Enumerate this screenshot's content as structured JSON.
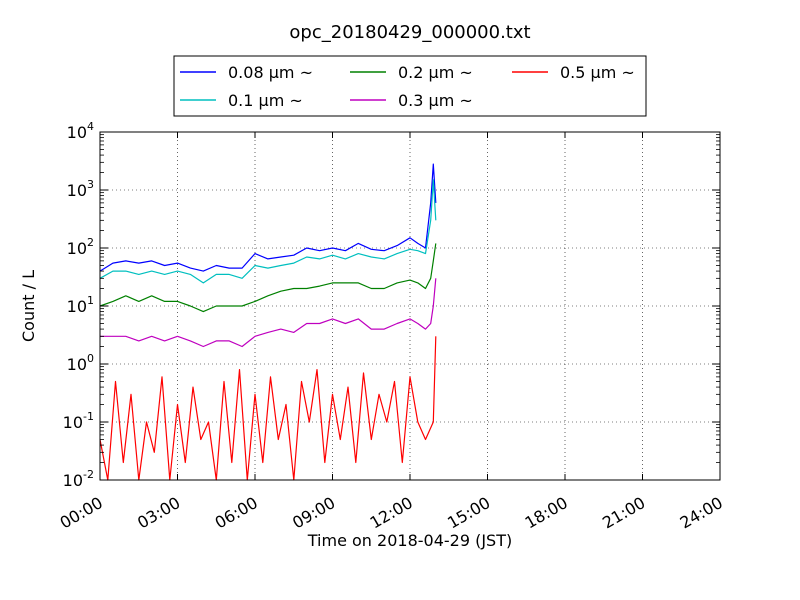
{
  "chart_data": {
    "type": "line",
    "title": "opc_20180429_000000.txt",
    "xlabel": "Time on 2018-04-29 (JST)",
    "ylabel": "Count / L",
    "x_unit": "hours",
    "xlim": [
      0,
      24
    ],
    "ylim": [
      0.01,
      10000
    ],
    "yscale": "log",
    "grid": true,
    "legend_position": "top-center",
    "x_ticks": [
      "00:00",
      "03:00",
      "06:00",
      "09:00",
      "12:00",
      "15:00",
      "18:00",
      "21:00",
      "24:00"
    ],
    "y_tick_bases": [
      "10",
      "10",
      "10",
      "10",
      "10",
      "10",
      "10"
    ],
    "y_tick_exps": [
      "-2",
      "-1",
      "0",
      "1",
      "2",
      "3",
      "4"
    ],
    "series": [
      {
        "name": "0.08 μm ~",
        "color": "#0000ff",
        "x": [
          0,
          0.5,
          1,
          1.5,
          2,
          2.5,
          3,
          3.5,
          4,
          4.5,
          5,
          5.5,
          6,
          6.5,
          7,
          7.5,
          8,
          8.5,
          9,
          9.5,
          10,
          10.5,
          11,
          11.5,
          12,
          12.3,
          12.6,
          12.8,
          12.9,
          13.0
        ],
        "y": [
          40,
          55,
          60,
          55,
          60,
          50,
          55,
          45,
          40,
          50,
          45,
          45,
          80,
          65,
          70,
          75,
          100,
          90,
          100,
          90,
          120,
          95,
          90,
          110,
          150,
          120,
          100,
          600,
          2800,
          600
        ]
      },
      {
        "name": "0.1 μm ~",
        "color": "#00bfbf",
        "x": [
          0,
          0.5,
          1,
          1.5,
          2,
          2.5,
          3,
          3.5,
          4,
          4.5,
          5,
          5.5,
          6,
          6.5,
          7,
          7.5,
          8,
          8.5,
          9,
          9.5,
          10,
          10.5,
          11,
          11.5,
          12,
          12.3,
          12.6,
          12.8,
          12.9,
          13.0
        ],
        "y": [
          30,
          40,
          40,
          35,
          40,
          35,
          40,
          35,
          25,
          35,
          35,
          30,
          50,
          45,
          50,
          55,
          70,
          65,
          75,
          65,
          80,
          70,
          65,
          80,
          95,
          90,
          80,
          300,
          1500,
          300
        ]
      },
      {
        "name": "0.2 μm ~",
        "color": "#008000",
        "x": [
          0,
          0.5,
          1,
          1.5,
          2,
          2.5,
          3,
          3.5,
          4,
          4.5,
          5,
          5.5,
          6,
          6.5,
          7,
          7.5,
          8,
          8.5,
          9,
          9.5,
          10,
          10.5,
          11,
          11.5,
          12,
          12.3,
          12.6,
          12.8,
          12.9,
          13.0
        ],
        "y": [
          10,
          12,
          15,
          12,
          15,
          12,
          12,
          10,
          8,
          10,
          10,
          10,
          12,
          15,
          18,
          20,
          20,
          22,
          25,
          25,
          25,
          20,
          20,
          25,
          28,
          25,
          20,
          30,
          60,
          120
        ]
      },
      {
        "name": "0.3 μm ~",
        "color": "#bf00bf",
        "x": [
          0,
          0.5,
          1,
          1.5,
          2,
          2.5,
          3,
          3.5,
          4,
          4.5,
          5,
          5.5,
          6,
          6.5,
          7,
          7.5,
          8,
          8.5,
          9,
          9.5,
          10,
          10.5,
          11,
          11.5,
          12,
          12.3,
          12.6,
          12.8,
          12.9,
          13.0
        ],
        "y": [
          3,
          3,
          3,
          2.5,
          3,
          2.5,
          3,
          2.5,
          2,
          2.5,
          2.5,
          2,
          3,
          3.5,
          4,
          3.5,
          5,
          5,
          6,
          5,
          6,
          4,
          4,
          5,
          6,
          5,
          4,
          5,
          10,
          30
        ]
      },
      {
        "name": "0.5 μm ~",
        "color": "#ff0000",
        "x": [
          0,
          0.3,
          0.6,
          0.9,
          1.2,
          1.5,
          1.8,
          2.1,
          2.4,
          2.7,
          3.0,
          3.3,
          3.6,
          3.9,
          4.2,
          4.5,
          4.8,
          5.1,
          5.4,
          5.7,
          6.0,
          6.3,
          6.6,
          6.9,
          7.2,
          7.5,
          7.8,
          8.1,
          8.4,
          8.7,
          9.0,
          9.3,
          9.6,
          9.9,
          10.2,
          10.5,
          10.8,
          11.1,
          11.4,
          11.7,
          12.0,
          12.3,
          12.6,
          12.9,
          13.0
        ],
        "y": [
          0.05,
          0.01,
          0.5,
          0.02,
          0.3,
          0.01,
          0.1,
          0.03,
          0.6,
          0.01,
          0.2,
          0.02,
          0.4,
          0.05,
          0.1,
          0.01,
          0.5,
          0.02,
          0.8,
          0.01,
          0.3,
          0.02,
          0.6,
          0.05,
          0.2,
          0.01,
          0.5,
          0.1,
          0.8,
          0.02,
          0.3,
          0.05,
          0.4,
          0.02,
          0.7,
          0.05,
          0.3,
          0.1,
          0.5,
          0.02,
          0.6,
          0.1,
          0.05,
          0.1,
          3
        ]
      }
    ]
  }
}
